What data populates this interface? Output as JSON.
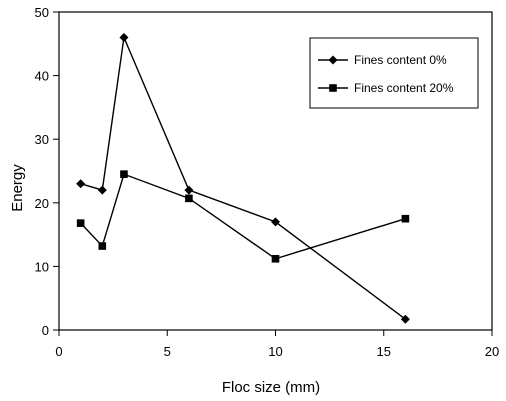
{
  "chart_data": {
    "type": "line",
    "title": "",
    "xlabel": "Floc size (mm)",
    "ylabel": "Energy",
    "xlim": [
      0,
      20
    ],
    "ylim": [
      0,
      50
    ],
    "xticks": [
      0,
      5,
      10,
      15,
      20
    ],
    "yticks": [
      0,
      10,
      20,
      30,
      40,
      50
    ],
    "xtick_labels": [
      "0",
      "5",
      "10",
      "15",
      "20"
    ],
    "ytick_labels": [
      "0",
      "10",
      "20",
      "30",
      "40",
      "50"
    ],
    "grid": false,
    "legend_position": "top-right",
    "series": [
      {
        "name": "Fines content 0%",
        "marker": "diamond",
        "color": "#000000",
        "x": [
          1,
          2,
          3,
          6,
          10,
          16
        ],
        "y": [
          23,
          22,
          46,
          22,
          17,
          1.7
        ]
      },
      {
        "name": "Fines content 20%",
        "marker": "square",
        "color": "#000000",
        "x": [
          1,
          2,
          3,
          6,
          10,
          16
        ],
        "y": [
          16.8,
          13.2,
          24.5,
          20.7,
          11.2,
          17.5
        ]
      }
    ]
  }
}
